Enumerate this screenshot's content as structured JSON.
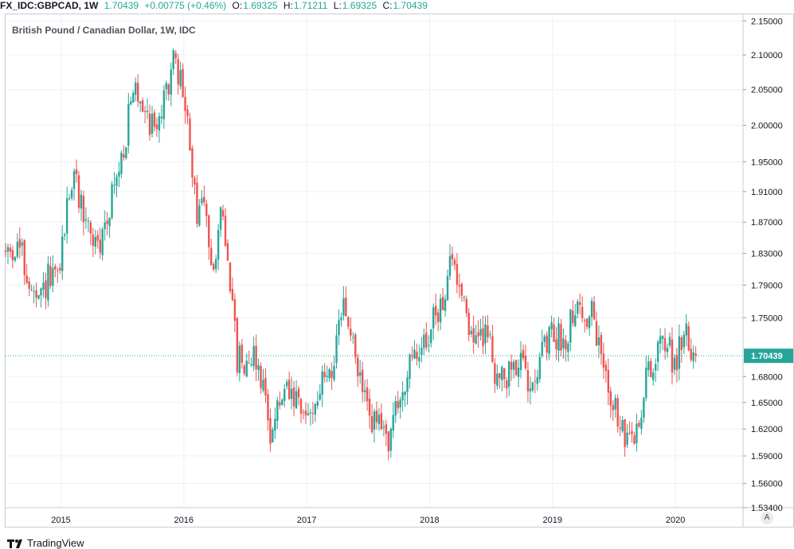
{
  "header": {
    "symbol": "FX_IDC:GBPCAD, 1W",
    "last": "1.70439",
    "change": "+0.00775 (+0.46%)",
    "o_label": "O:",
    "o_value": "1.69325",
    "h_label": "H:",
    "h_value": "1.71211",
    "l_label": "L:",
    "l_value": "1.69325",
    "c_label": "C:",
    "c_value": "1.70439"
  },
  "footer": {
    "brand": "TradingView",
    "auto_label": "A"
  },
  "colors": {
    "up": "#26a69a",
    "down": "#ef5350",
    "grid": "#eef0f3",
    "price_line": "#26a69a"
  },
  "chart_data": {
    "type": "candlestick",
    "title": "British Pound / Canadian Dollar, 1W, IDC",
    "y_scale": "log",
    "ylim": [
      1.534,
      2.16
    ],
    "xlim": [
      2014.55,
      2020.55
    ],
    "y_ticks": [
      2.15,
      2.1,
      2.05,
      2.0,
      1.95,
      1.91,
      1.87,
      1.83,
      1.79,
      1.75,
      1.68,
      1.65,
      1.62,
      1.59,
      1.56,
      1.534
    ],
    "y_tick_labels": [
      "2.15000",
      "2.10000",
      "2.05000",
      "2.00000",
      "1.95000",
      "1.91000",
      "1.87000",
      "1.83000",
      "1.79000",
      "1.75000",
      "1.68000",
      "1.65000",
      "1.62000",
      "1.59000",
      "1.56000",
      "1.53400"
    ],
    "x_ticks": [
      2015,
      2016,
      2017,
      2018,
      2019,
      2020
    ],
    "x_tick_labels": [
      "2015",
      "2016",
      "2017",
      "2018",
      "2019",
      "2020"
    ],
    "last_price": 1.70439,
    "last_price_label": "1.70439",
    "grid": true,
    "path_anchors": [
      [
        2014.55,
        1.83
      ],
      [
        2014.68,
        1.84
      ],
      [
        2014.78,
        1.78
      ],
      [
        2014.83,
        1.76
      ],
      [
        2014.92,
        1.8
      ],
      [
        2014.97,
        1.79
      ],
      [
        2015.02,
        1.82
      ],
      [
        2015.08,
        1.91
      ],
      [
        2015.13,
        1.93
      ],
      [
        2015.17,
        1.9
      ],
      [
        2015.25,
        1.86
      ],
      [
        2015.33,
        1.83
      ],
      [
        2015.42,
        1.9
      ],
      [
        2015.5,
        1.94
      ],
      [
        2015.57,
        2.01
      ],
      [
        2015.62,
        2.05
      ],
      [
        2015.7,
        2.03
      ],
      [
        2015.75,
        2.0
      ],
      [
        2015.85,
        2.02
      ],
      [
        2015.92,
        2.09
      ],
      [
        2016.0,
        2.06
      ],
      [
        2016.05,
        2.0
      ],
      [
        2016.12,
        1.88
      ],
      [
        2016.17,
        1.9
      ],
      [
        2016.25,
        1.82
      ],
      [
        2016.33,
        1.88
      ],
      [
        2016.38,
        1.83
      ],
      [
        2016.45,
        1.7
      ],
      [
        2016.52,
        1.7
      ],
      [
        2016.58,
        1.71
      ],
      [
        2016.65,
        1.68
      ],
      [
        2016.72,
        1.62
      ],
      [
        2016.78,
        1.64
      ],
      [
        2016.85,
        1.66
      ],
      [
        2016.92,
        1.65
      ],
      [
        2017.0,
        1.63
      ],
      [
        2017.08,
        1.65
      ],
      [
        2017.17,
        1.68
      ],
      [
        2017.25,
        1.7
      ],
      [
        2017.32,
        1.77
      ],
      [
        2017.4,
        1.71
      ],
      [
        2017.48,
        1.66
      ],
      [
        2017.55,
        1.63
      ],
      [
        2017.62,
        1.62
      ],
      [
        2017.68,
        1.61
      ],
      [
        2017.75,
        1.64
      ],
      [
        2017.83,
        1.68
      ],
      [
        2017.9,
        1.7
      ],
      [
        2018.0,
        1.73
      ],
      [
        2018.1,
        1.76
      ],
      [
        2018.2,
        1.82
      ],
      [
        2018.3,
        1.78
      ],
      [
        2018.35,
        1.73
      ],
      [
        2018.42,
        1.72
      ],
      [
        2018.48,
        1.74
      ],
      [
        2018.55,
        1.69
      ],
      [
        2018.62,
        1.67
      ],
      [
        2018.72,
        1.7
      ],
      [
        2018.82,
        1.68
      ],
      [
        2018.92,
        1.7
      ],
      [
        2019.02,
        1.73
      ],
      [
        2019.12,
        1.72
      ],
      [
        2019.18,
        1.76
      ],
      [
        2019.22,
        1.77
      ],
      [
        2019.28,
        1.74
      ],
      [
        2019.33,
        1.76
      ],
      [
        2019.4,
        1.71
      ],
      [
        2019.5,
        1.66
      ],
      [
        2019.55,
        1.63
      ],
      [
        2019.6,
        1.61
      ],
      [
        2019.65,
        1.6
      ],
      [
        2019.7,
        1.62
      ],
      [
        2019.75,
        1.64
      ],
      [
        2019.8,
        1.7
      ],
      [
        2019.85,
        1.69
      ],
      [
        2019.92,
        1.73
      ],
      [
        2020.0,
        1.7
      ],
      [
        2020.05,
        1.71
      ],
      [
        2020.1,
        1.74
      ],
      [
        2020.14,
        1.72
      ],
      [
        2020.18,
        1.7
      ]
    ]
  }
}
